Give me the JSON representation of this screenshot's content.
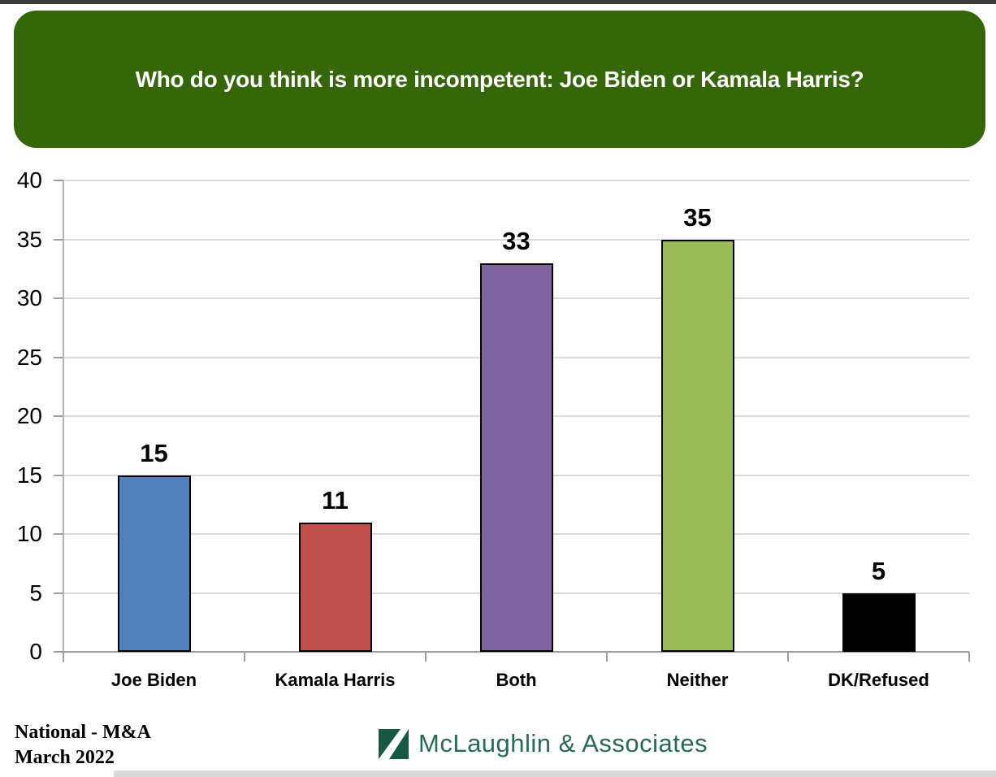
{
  "header": {
    "title": "Who do you think is more incompetent: Joe Biden or Kamala Harris?",
    "bg_color": "#356708"
  },
  "chart_data": {
    "type": "bar",
    "title": "Who do you think is more incompetent: Joe Biden or Kamala Harris?",
    "categories": [
      "Joe Biden",
      "Kamala Harris",
      "Both",
      "Neither",
      "DK/Refused"
    ],
    "values": [
      15,
      11,
      33,
      35,
      5
    ],
    "data_labels": [
      "15",
      "11",
      "33",
      "35",
      "5"
    ],
    "colors": [
      "#4F81BD",
      "#C0504D",
      "#8064A2",
      "#9BBB59",
      "#000000"
    ],
    "xlabel": "",
    "ylabel": "",
    "ylim": [
      0,
      40
    ],
    "ytick_step": 5,
    "grid": true,
    "legend_position": "none"
  },
  "footer": {
    "source_line1": "National - M&A",
    "source_line2": "March 2022",
    "logo_text": "McLaughlin & Associates",
    "logo_square_color": "#175844",
    "logo_text_color": "#266A58"
  }
}
